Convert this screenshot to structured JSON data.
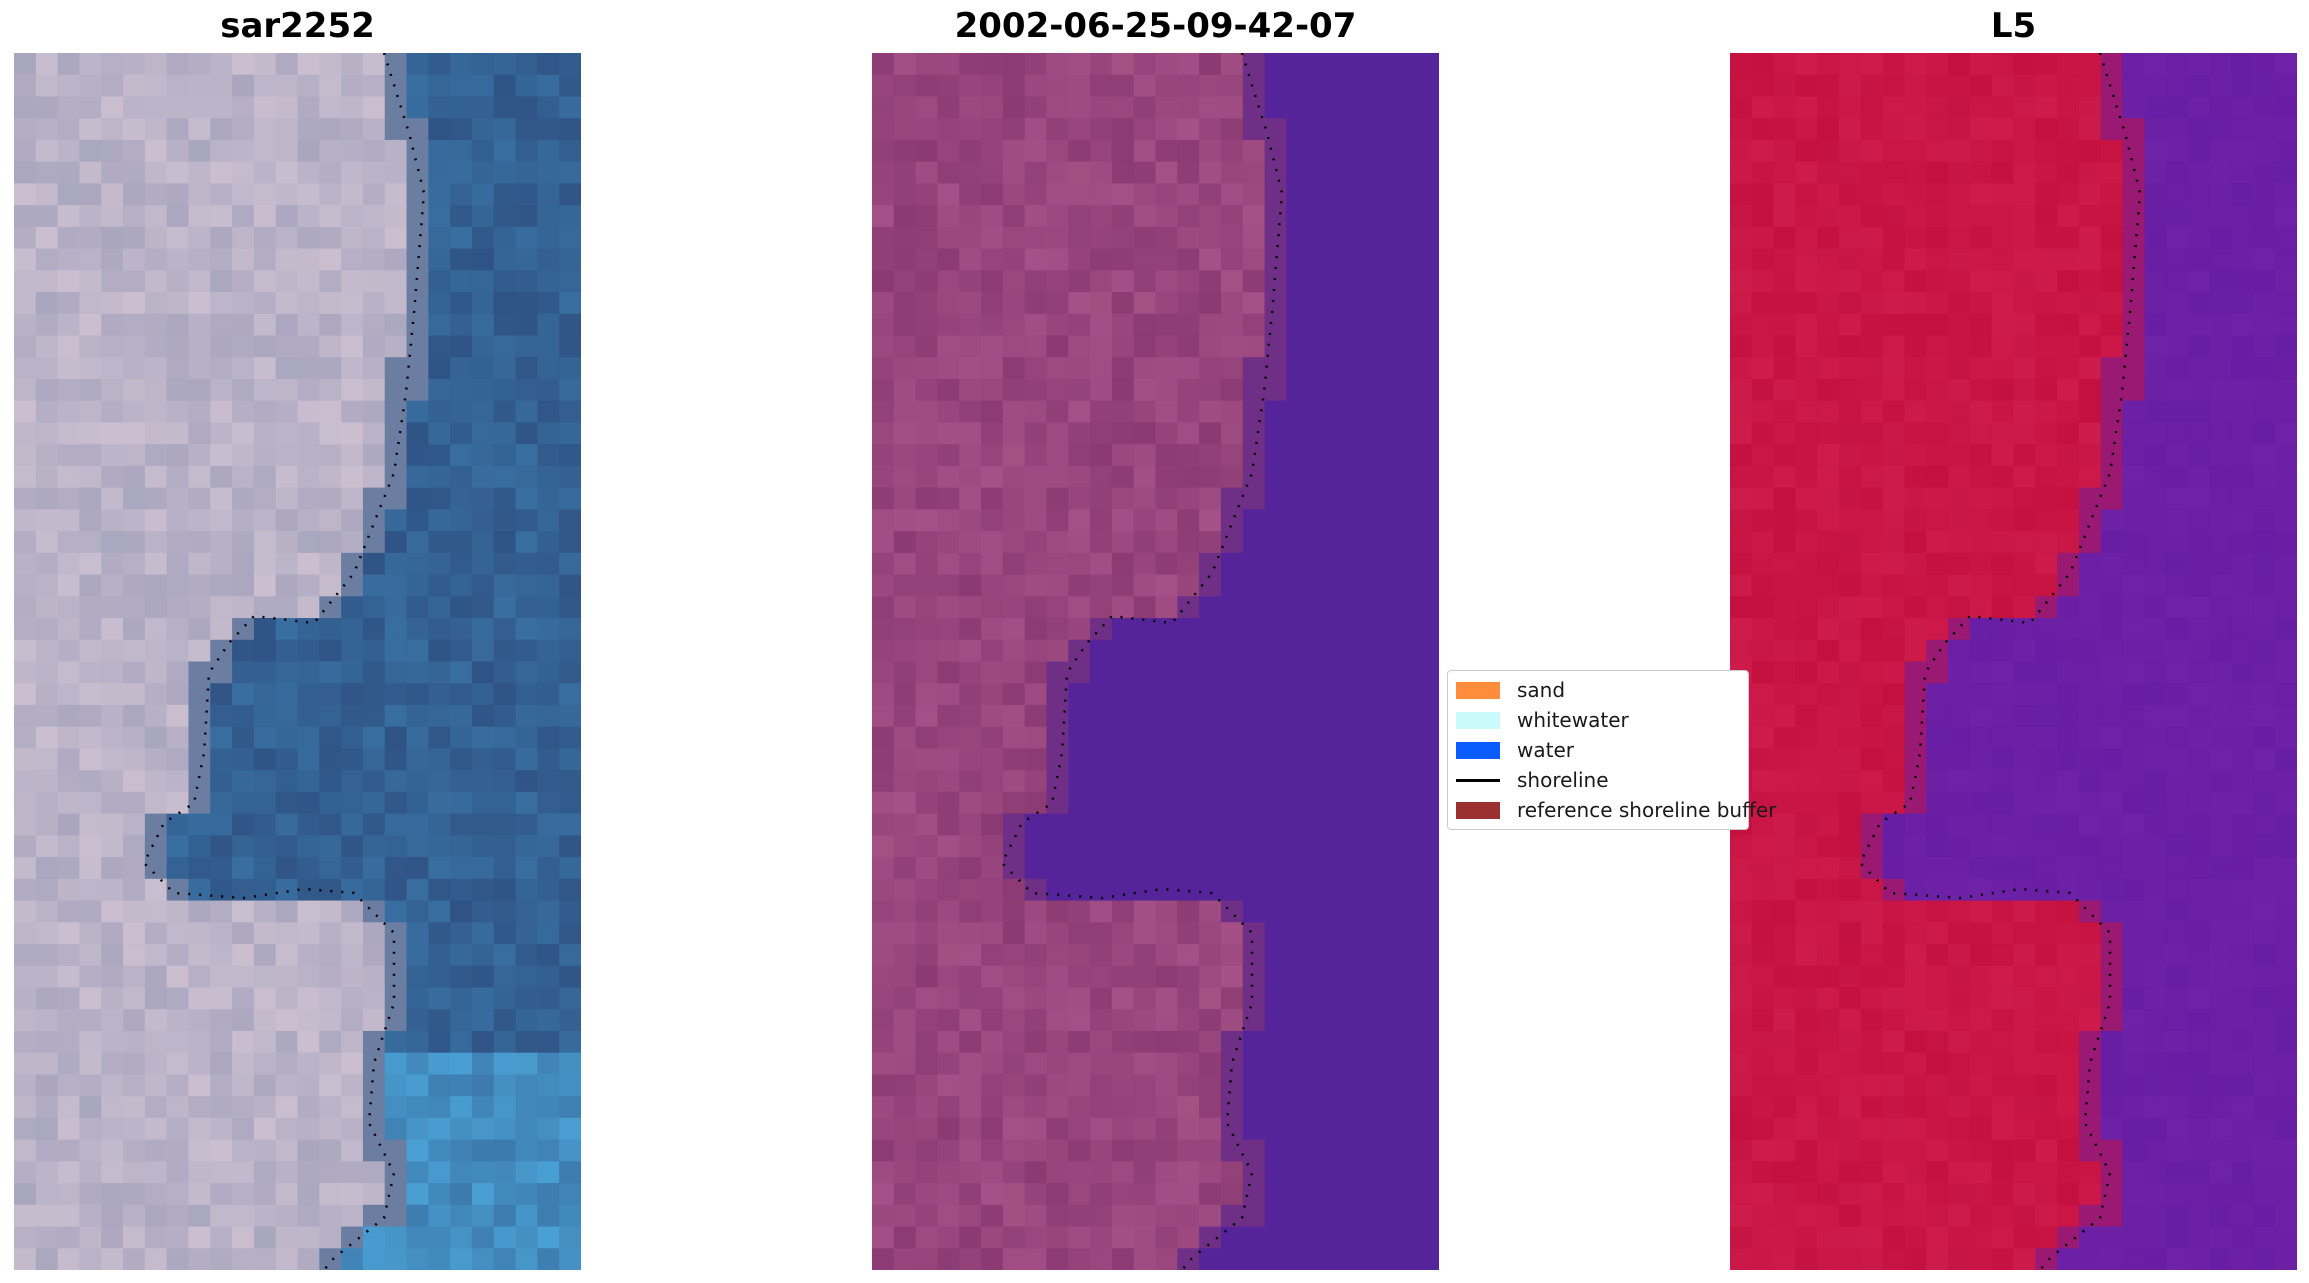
{
  "panels": [
    {
      "title": "sar2252",
      "base": "#5a6e95",
      "land": "#a9a6bf",
      "land_hi": "#d9c9d6",
      "water": "#2f5384",
      "water_hi": "#4aa0d4"
    },
    {
      "title": "2002-06-25-09-42-07",
      "base": "#8b3a73",
      "land": "#8b3a73",
      "land_hi": "#b05a8e",
      "water": "#55249a",
      "water_hi": "#55249a"
    },
    {
      "title": "L5",
      "base": "#bd0f3c",
      "land": "#c3103f",
      "land_hi": "#d22050",
      "water": "#6e22a6",
      "water_hi": "#5b14a0"
    }
  ],
  "legend": {
    "items": [
      {
        "label": "sand",
        "color": "#ff8c3a",
        "kind": "patch"
      },
      {
        "label": "whitewater",
        "color": "#c9fbfb",
        "kind": "patch"
      },
      {
        "label": "water",
        "color": "#0a5cff",
        "kind": "patch"
      },
      {
        "label": "shoreline",
        "color": "#000000",
        "kind": "line"
      },
      {
        "label": "reference shoreline buffer",
        "color": "#9a3030",
        "kind": "patch"
      }
    ]
  },
  "shoreline_color": "#000000"
}
